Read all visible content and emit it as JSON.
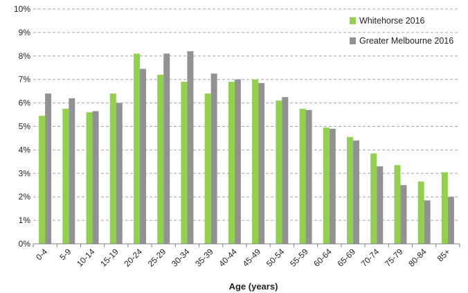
{
  "chart_data": {
    "type": "bar",
    "xlabel": "Age (years)",
    "ylabel": "",
    "ylim": [
      0,
      10
    ],
    "yticks": [
      "0%",
      "1%",
      "2%",
      "3%",
      "4%",
      "5%",
      "6%",
      "7%",
      "8%",
      "9%",
      "10%"
    ],
    "grid": true,
    "legend_position": "top-right",
    "categories": [
      "0-4",
      "5-9",
      "10-14",
      "15-19",
      "20-24",
      "25-29",
      "30-34",
      "35-39",
      "40-44",
      "45-49",
      "50-54",
      "55-59",
      "60-64",
      "65-69",
      "70-74",
      "75-79",
      "80-84",
      "85+"
    ],
    "series": [
      {
        "name": "Whitehorse 2016",
        "color": "#92d050",
        "values": [
          5.45,
          5.75,
          5.6,
          6.4,
          8.1,
          7.2,
          6.9,
          6.4,
          6.9,
          7.0,
          6.1,
          5.75,
          4.95,
          4.55,
          3.85,
          3.35,
          2.65,
          3.05
        ]
      },
      {
        "name": "Greater Melbourne 2016",
        "color": "#929292",
        "values": [
          6.4,
          6.2,
          5.65,
          6.0,
          7.45,
          8.1,
          8.2,
          7.25,
          7.0,
          6.85,
          6.25,
          5.7,
          4.9,
          4.4,
          3.3,
          2.5,
          1.85,
          2.0
        ]
      }
    ]
  }
}
